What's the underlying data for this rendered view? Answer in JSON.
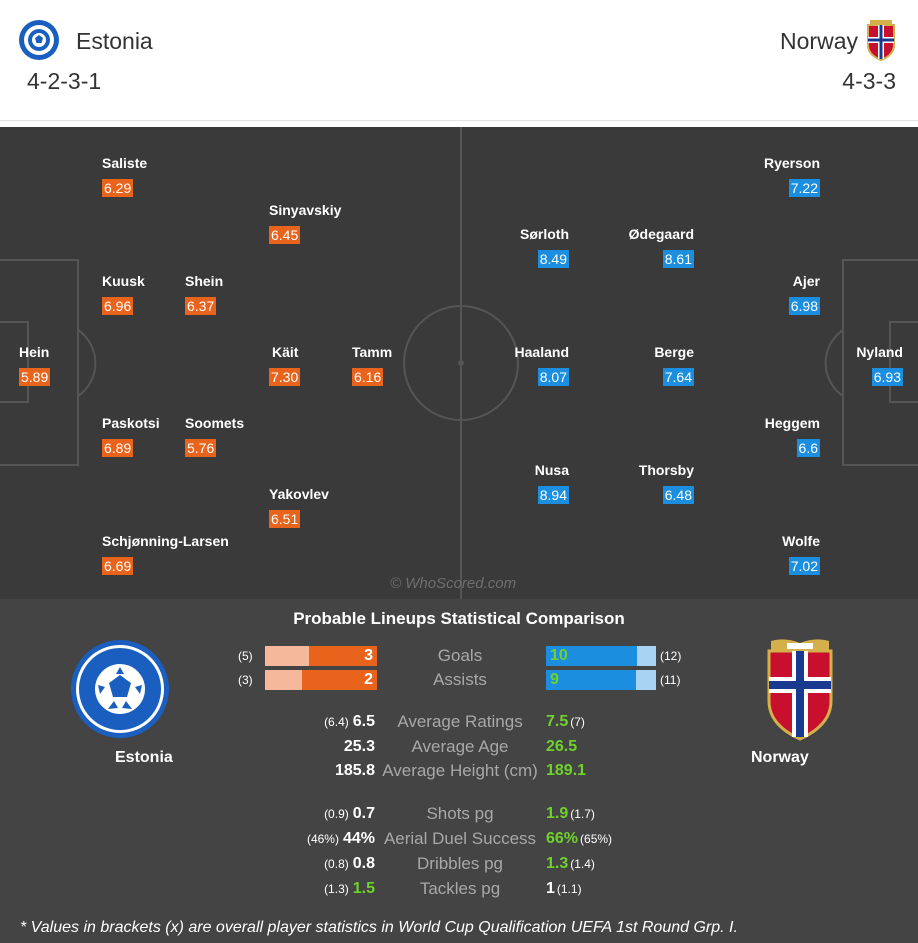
{
  "header": {
    "home": {
      "name": "Estonia",
      "formation": "4-2-3-1"
    },
    "away": {
      "name": "Norway",
      "formation": "4-3-3"
    }
  },
  "colors": {
    "home_accent": "#e8641c",
    "away_accent": "#1b8ee0",
    "better_value": "#6fd22a"
  },
  "pitch": {
    "watermark": "© WhoScored.com",
    "home_players": [
      {
        "name": "Saliste",
        "rating": "6.29"
      },
      {
        "name": "Sinyavskiy",
        "rating": "6.45"
      },
      {
        "name": "Kuusk",
        "rating": "6.96"
      },
      {
        "name": "Shein",
        "rating": "6.37"
      },
      {
        "name": "Hein",
        "rating": "5.89"
      },
      {
        "name": "Käit",
        "rating": "7.30"
      },
      {
        "name": "Tamm",
        "rating": "6.16"
      },
      {
        "name": "Paskotsi",
        "rating": "6.89"
      },
      {
        "name": "Soomets",
        "rating": "5.76"
      },
      {
        "name": "Yakovlev",
        "rating": "6.51"
      },
      {
        "name": "Schjønning-Larsen",
        "rating": "6.69"
      }
    ],
    "away_players": [
      {
        "name": "Ryerson",
        "rating": "7.22"
      },
      {
        "name": "Sørloth",
        "rating": "8.49"
      },
      {
        "name": "Ødegaard",
        "rating": "8.61"
      },
      {
        "name": "Ajer",
        "rating": "6.98"
      },
      {
        "name": "Haaland",
        "rating": "8.07"
      },
      {
        "name": "Berge",
        "rating": "7.64"
      },
      {
        "name": "Nyland",
        "rating": "6.93"
      },
      {
        "name": "Heggem",
        "rating": "6.6"
      },
      {
        "name": "Nusa",
        "rating": "8.94"
      },
      {
        "name": "Thorsby",
        "rating": "6.48"
      },
      {
        "name": "Wolfe",
        "rating": "7.02"
      }
    ]
  },
  "comparison": {
    "title": "Probable Lineups Statistical Comparison",
    "home_name": "Estonia",
    "away_name": "Norway",
    "bar_stats": [
      {
        "label": "Goals",
        "home": "3",
        "home_bracket": "(5)",
        "away": "10",
        "away_bracket": "(12)",
        "home_fraction": 0.6,
        "away_fraction": 0.83
      },
      {
        "label": "Assists",
        "home": "2",
        "home_bracket": "(3)",
        "away": "9",
        "away_bracket": "(11)",
        "home_fraction": 0.67,
        "away_fraction": 0.82
      }
    ],
    "stats": [
      {
        "label": "Average Ratings",
        "home": "6.5",
        "home_bracket": "(6.4)",
        "away": "7.5",
        "away_bracket": "(7)"
      },
      {
        "label": "Average Age",
        "home": "25.3",
        "home_bracket": "",
        "away": "26.5",
        "away_bracket": ""
      },
      {
        "label": "Average Height (cm)",
        "home": "185.8",
        "home_bracket": "",
        "away": "189.1",
        "away_bracket": ""
      },
      {
        "label": "Shots pg",
        "home": "0.7",
        "home_bracket": "(0.9)",
        "away": "1.9",
        "away_bracket": "(1.7)"
      },
      {
        "label": "Aerial Duel Success",
        "home": "44%",
        "home_bracket": "(46%)",
        "away": "66%",
        "away_bracket": "(65%)"
      },
      {
        "label": "Dribbles pg",
        "home": "0.8",
        "home_bracket": "(0.8)",
        "away": "1.3",
        "away_bracket": "(1.4)"
      },
      {
        "label": "Tackles pg",
        "home": "1.5",
        "home_bracket": "(1.3)",
        "away": "1",
        "away_bracket": "(1.1)"
      }
    ],
    "footnote": "* Values in brackets (x) are overall player statistics in World Cup Qualification UEFA 1st Round Grp. I."
  }
}
